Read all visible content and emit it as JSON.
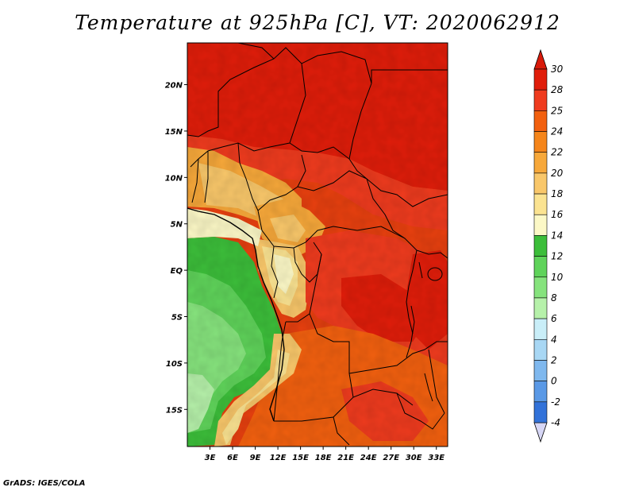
{
  "title": "Temperature at 925hPa [C], VT: 2020062912",
  "credit": "GrADS: IGES/COLA",
  "map": {
    "lon_range": [
      0,
      34.5
    ],
    "lat_range": [
      -19,
      24.5
    ],
    "lat_ticks": [
      {
        "value": 20,
        "label": "20N"
      },
      {
        "value": 15,
        "label": "15N"
      },
      {
        "value": 10,
        "label": "10N"
      },
      {
        "value": 5,
        "label": "5N"
      },
      {
        "value": 0,
        "label": "EQ"
      },
      {
        "value": -5,
        "label": "5S"
      },
      {
        "value": -10,
        "label": "10S"
      },
      {
        "value": -15,
        "label": "15S"
      }
    ],
    "lon_ticks": [
      {
        "value": 3,
        "label": "3E"
      },
      {
        "value": 6,
        "label": "6E"
      },
      {
        "value": 9,
        "label": "9E"
      },
      {
        "value": 12,
        "label": "12E"
      },
      {
        "value": 15,
        "label": "15E"
      },
      {
        "value": 18,
        "label": "18E"
      },
      {
        "value": 21,
        "label": "21E"
      },
      {
        "value": 24,
        "label": "24E"
      },
      {
        "value": 27,
        "label": "27E"
      },
      {
        "value": 30,
        "label": "30E"
      },
      {
        "value": 33,
        "label": "33E"
      }
    ]
  },
  "colorbar": {
    "labels": [
      "30",
      "28",
      "25",
      "24",
      "22",
      "20",
      "18",
      "16",
      "14",
      "12",
      "10",
      "8",
      "6",
      "4",
      "2",
      "0",
      "-2",
      "-4"
    ],
    "colors": [
      "#e01d0a",
      "#ef3b1e",
      "#f2600f",
      "#f5851a",
      "#f7a83a",
      "#f9c76a",
      "#fbe391",
      "#fcf8c6",
      "#3cbe3a",
      "#5fd35a",
      "#86e37d",
      "#b6f1aa",
      "#c9eef8",
      "#a8d7f4",
      "#7fb8ee",
      "#5a99e6",
      "#3272d9",
      "#1751c3",
      "#0b2a8c"
    ],
    "top_color": "#d81a0a",
    "bottom_color": "#d6d6f5"
  }
}
